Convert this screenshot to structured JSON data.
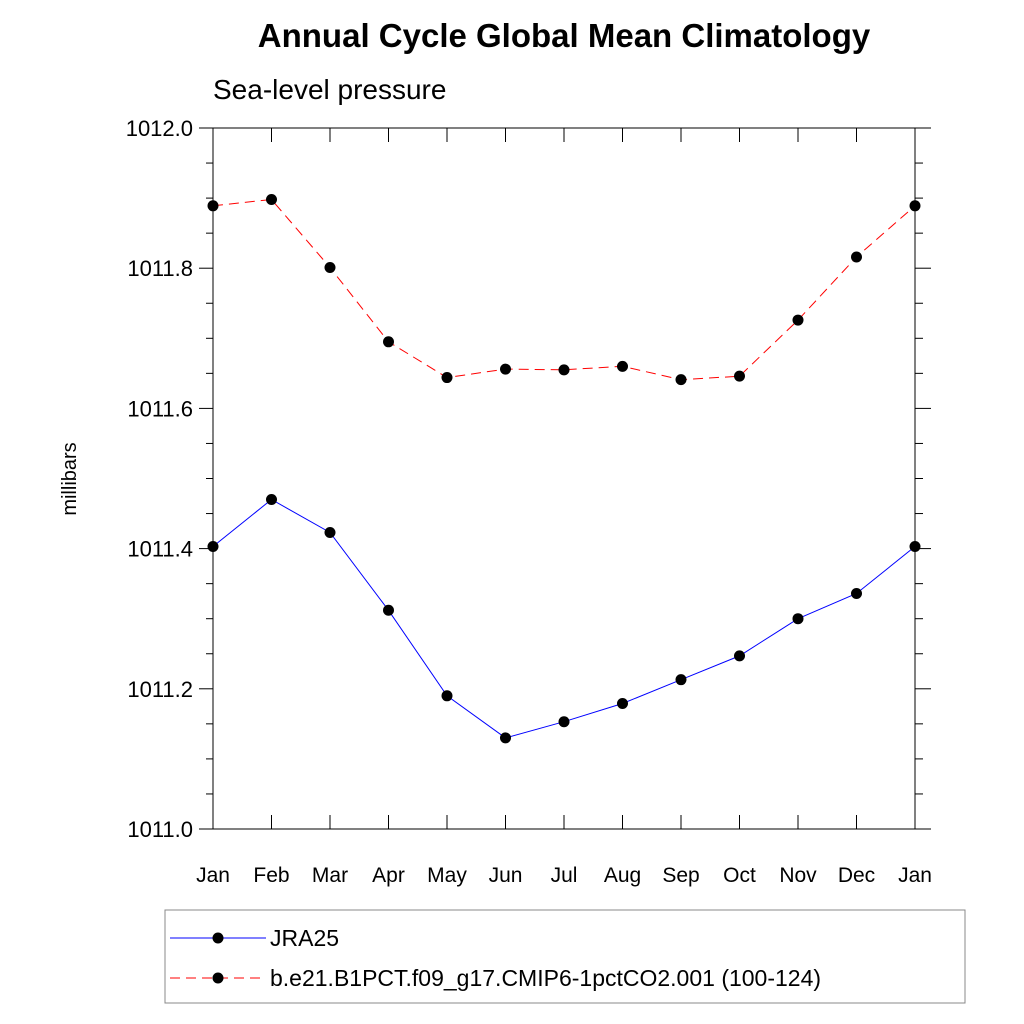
{
  "chart_data": {
    "type": "line",
    "title": "Annual Cycle Global Mean Climatology",
    "subtitle": "Sea-level pressure",
    "ylabel": "millibars",
    "xlabel": "",
    "categories": [
      "Jan",
      "Feb",
      "Mar",
      "Apr",
      "May",
      "Jun",
      "Jul",
      "Aug",
      "Sep",
      "Oct",
      "Nov",
      "Dec",
      "Jan"
    ],
    "ylim": [
      1011.0,
      1012.0
    ],
    "yticks": [
      "1011.0",
      "1011.2",
      "1011.4",
      "1011.6",
      "1011.8",
      "1012.0"
    ],
    "grid": false,
    "legend_position": "bottom",
    "series": [
      {
        "name": "JRA25",
        "color": "#0000ff",
        "line_style": "solid",
        "marker": "filled-circle",
        "values": [
          1011.403,
          1011.47,
          1011.423,
          1011.312,
          1011.19,
          1011.13,
          1011.153,
          1011.179,
          1011.213,
          1011.247,
          1011.3,
          1011.336,
          1011.403
        ]
      },
      {
        "name": "b.e21.B1PCT.f09_g17.CMIP6-1pctCO2.001 (100-124)",
        "color": "#ff0000",
        "line_style": "dashed",
        "marker": "filled-circle",
        "values": [
          1011.889,
          1011.898,
          1011.801,
          1011.695,
          1011.644,
          1011.656,
          1011.655,
          1011.66,
          1011.641,
          1011.646,
          1011.726,
          1011.816,
          1011.889
        ]
      }
    ]
  }
}
